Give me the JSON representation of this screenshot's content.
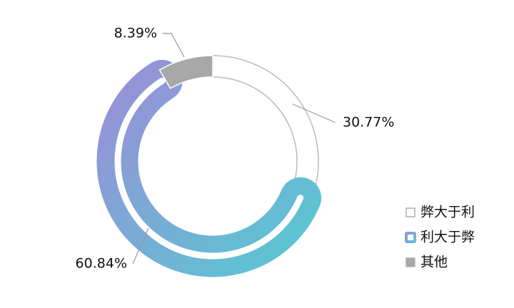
{
  "chart_data": {
    "type": "pie",
    "categories": [
      "弊大于利",
      "利大于弊",
      "其他"
    ],
    "values": [
      30.77,
      60.84,
      8.39
    ],
    "value_labels": [
      "30.77%",
      "60.84%",
      "8.39%"
    ],
    "colors": [
      "#ffffff",
      [
        "#9b8ed8",
        "#55cad2"
      ],
      "#a8a8a8"
    ],
    "legend": "right"
  }
}
